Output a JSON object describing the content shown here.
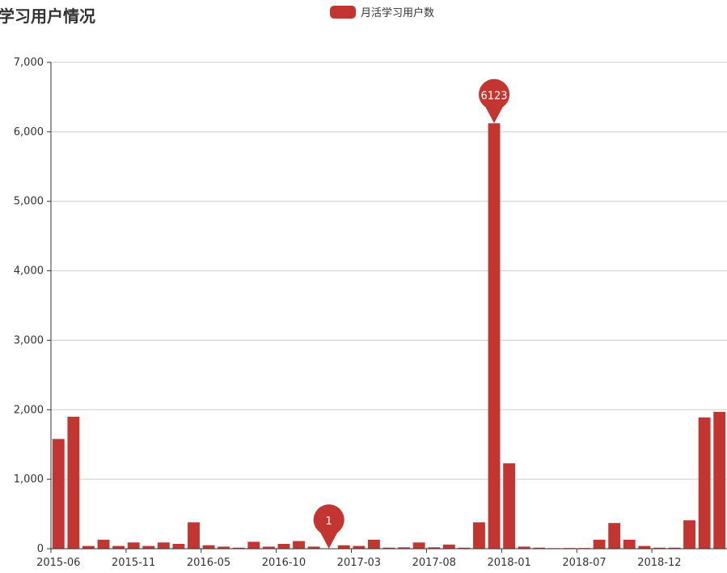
{
  "chart_data": {
    "type": "bar",
    "title": "活学习用户情况",
    "legend": {
      "label": "月活学习用户数",
      "position": "top-center"
    },
    "series": [
      {
        "name": "月活学习用户数",
        "color": "#c23531",
        "values": [
          1580,
          1900,
          40,
          130,
          40,
          90,
          40,
          90,
          70,
          380,
          50,
          30,
          15,
          100,
          30,
          70,
          110,
          30,
          1,
          50,
          40,
          130,
          15,
          20,
          90,
          20,
          60,
          15,
          380,
          6123,
          1230,
          30,
          15,
          8,
          10,
          10,
          130,
          370,
          130,
          40,
          15,
          15,
          410,
          1890,
          1970
        ]
      }
    ],
    "x_tick_labels": [
      "2015-06",
      "2015-11",
      "2016-05",
      "2016-10",
      "2017-03",
      "2017-08",
      "2018-01",
      "2018-07",
      "2018-12"
    ],
    "ylim": [
      0,
      7000
    ],
    "y_ticks": [
      "0",
      "1,000",
      "2,000",
      "3,000",
      "4,000",
      "5,000",
      "6,000",
      "7,000"
    ],
    "grid": true,
    "mark_points": [
      {
        "label": "6123",
        "type": "max"
      },
      {
        "label": "1",
        "type": "min"
      }
    ]
  }
}
